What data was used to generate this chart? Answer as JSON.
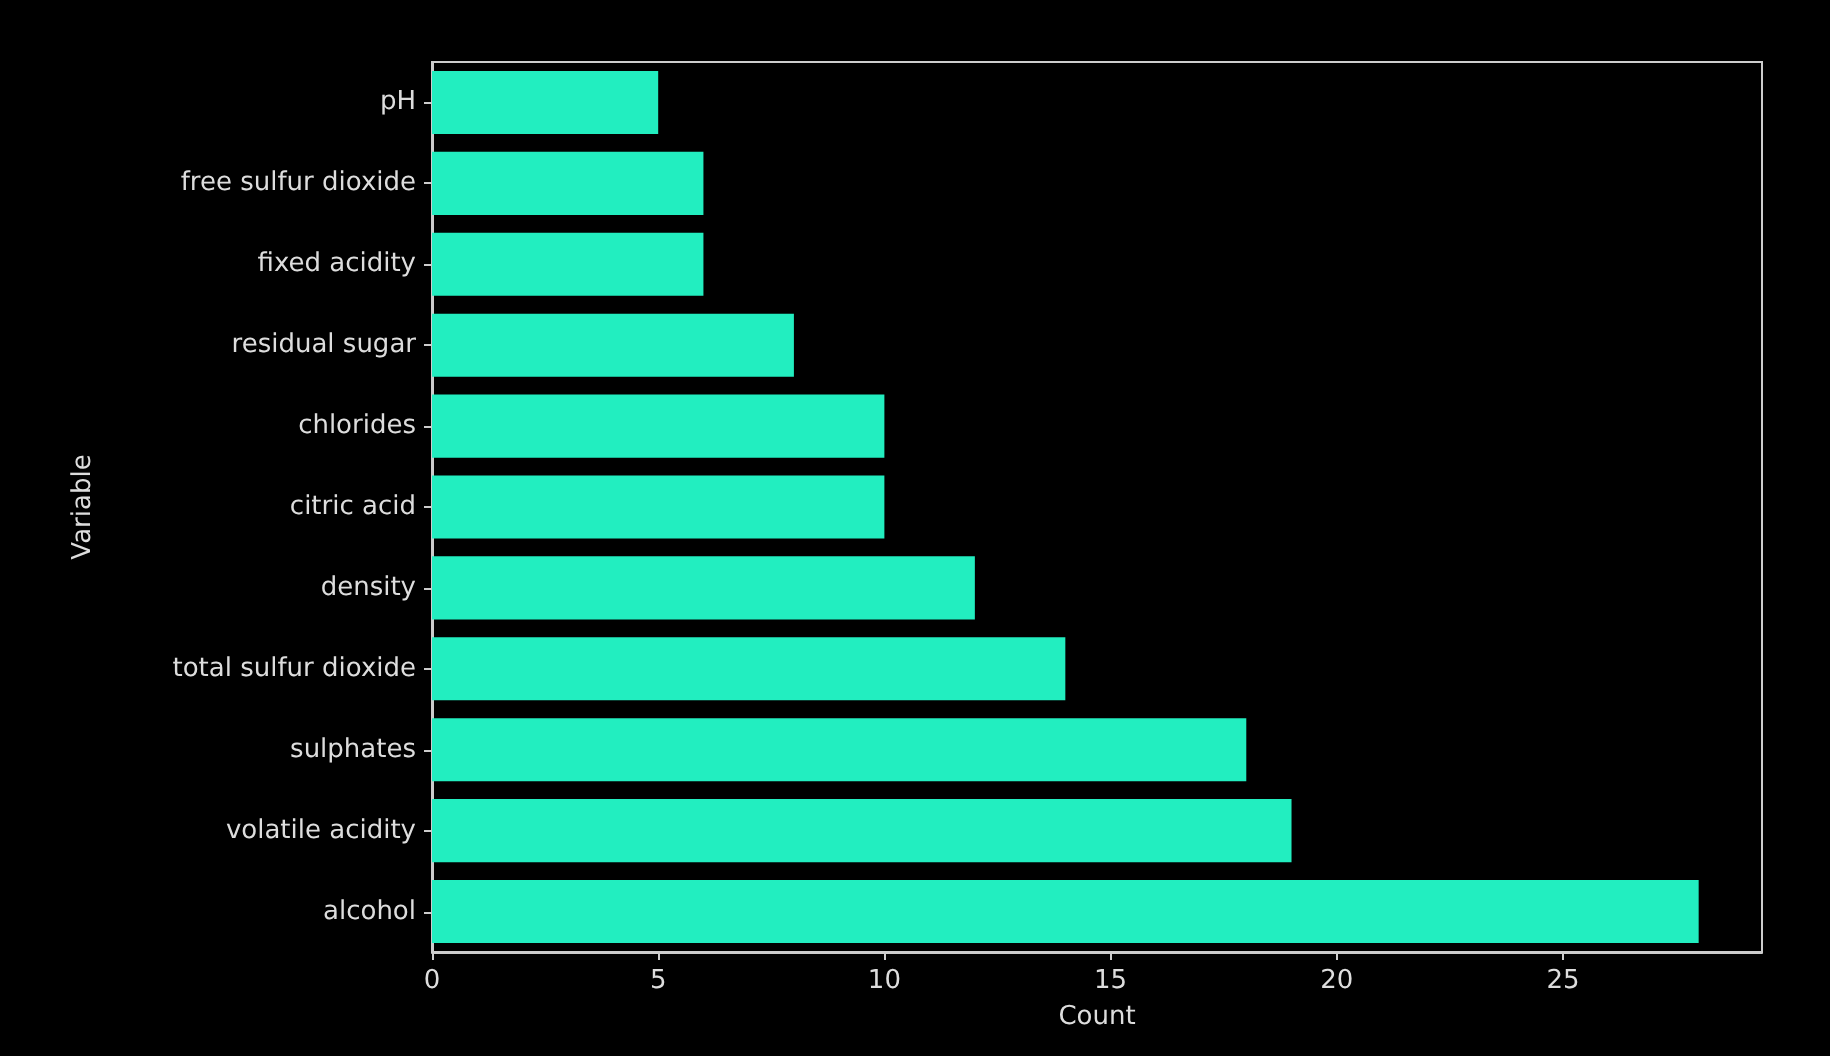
{
  "chart_data": {
    "type": "bar",
    "orientation": "horizontal",
    "xlabel": "Count",
    "ylabel": "Variable",
    "categories": [
      "pH",
      "free sulfur dioxide",
      "fixed acidity",
      "residual sugar",
      "chlorides",
      "citric acid",
      "density",
      "total sulfur dioxide",
      "sulphates",
      "volatile acidity",
      "alcohol"
    ],
    "values": [
      5,
      6,
      6,
      8,
      10,
      10,
      12,
      14,
      18,
      19,
      28
    ],
    "color": "#22eec0",
    "xlim": [
      0,
      29.4
    ],
    "xticks": [
      0,
      5,
      10,
      15,
      20,
      25
    ],
    "grid": false
  }
}
